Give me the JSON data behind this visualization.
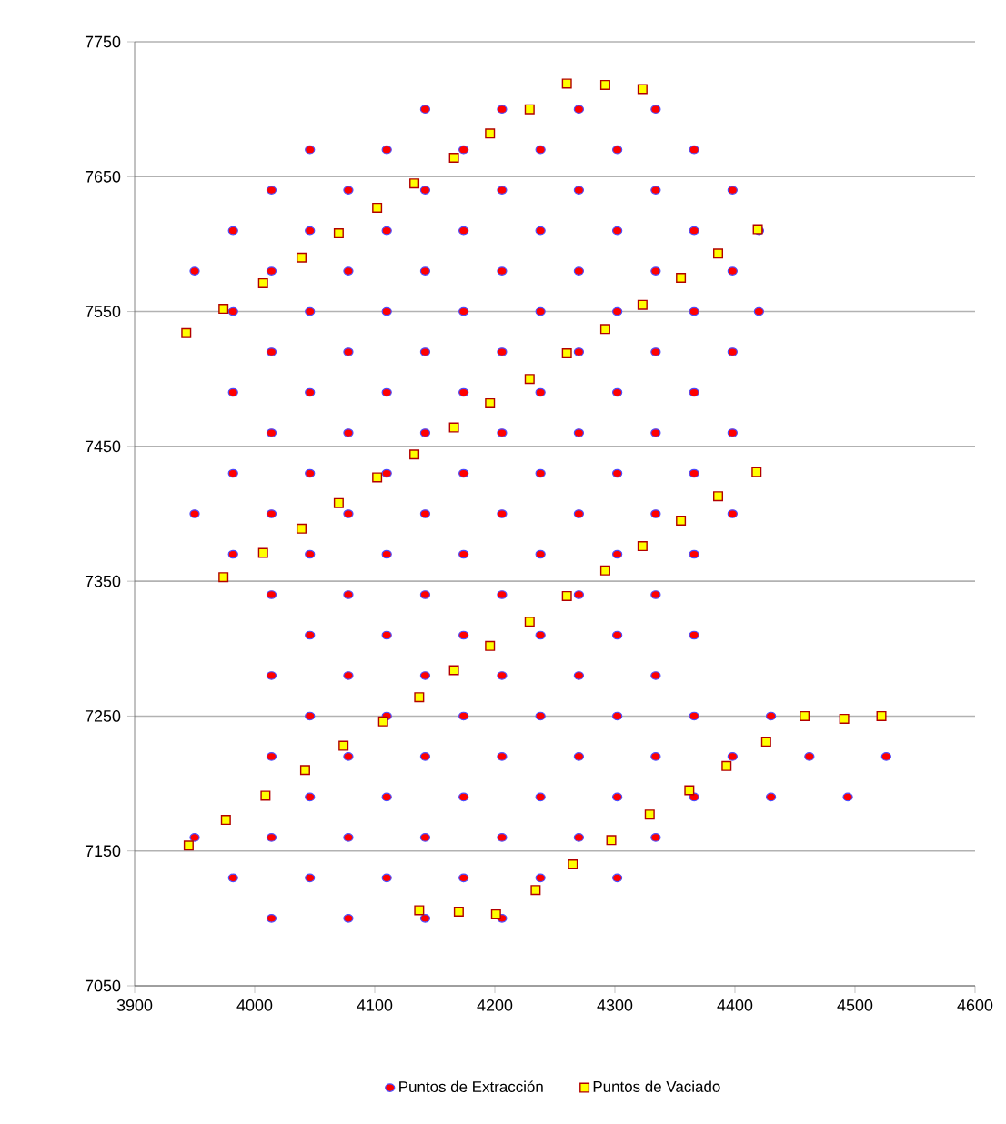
{
  "chart_data": {
    "type": "scatter",
    "xlim": [
      3900,
      4600
    ],
    "ylim": [
      7050,
      7750
    ],
    "xticks": [
      3900,
      4000,
      4100,
      4200,
      4300,
      4400,
      4500,
      4600
    ],
    "yticks": [
      7050,
      7150,
      7250,
      7350,
      7450,
      7550,
      7650,
      7750
    ],
    "grid": "y",
    "legend": "bottom",
    "series": [
      {
        "name": "Puntos de Extracción",
        "color": "#ff0000",
        "marker": "circle",
        "x": [
          3950,
          3950,
          3950,
          3982,
          3982,
          3982,
          3982,
          3982,
          3982,
          4014,
          4014,
          4014,
          4014,
          4014,
          4014,
          4014,
          4014,
          4014,
          4014,
          4046,
          4046,
          4046,
          4046,
          4046,
          4046,
          4046,
          4046,
          4046,
          4046,
          4078,
          4078,
          4078,
          4078,
          4078,
          4078,
          4078,
          4078,
          4078,
          4078,
          4110,
          4110,
          4110,
          4110,
          4110,
          4110,
          4110,
          4110,
          4110,
          4110,
          4142,
          4142,
          4142,
          4142,
          4142,
          4142,
          4142,
          4142,
          4142,
          4142,
          4142,
          4174,
          4174,
          4174,
          4174,
          4174,
          4174,
          4174,
          4174,
          4174,
          4174,
          4206,
          4206,
          4206,
          4206,
          4206,
          4206,
          4206,
          4206,
          4206,
          4206,
          4206,
          4238,
          4238,
          4238,
          4238,
          4238,
          4238,
          4238,
          4238,
          4238,
          4238,
          4270,
          4270,
          4270,
          4270,
          4270,
          4270,
          4270,
          4270,
          4270,
          4270,
          4302,
          4302,
          4302,
          4302,
          4302,
          4302,
          4302,
          4302,
          4302,
          4302,
          4334,
          4334,
          4334,
          4334,
          4334,
          4334,
          4334,
          4334,
          4334,
          4334,
          4366,
          4366,
          4366,
          4366,
          4366,
          4366,
          4366,
          4366,
          4366,
          4398,
          4398,
          4398,
          4398,
          4398,
          4398,
          4430,
          4430,
          4420,
          4420,
          4462,
          4494,
          4526
        ],
        "values": [
          7160,
          7400,
          7580,
          7130,
          7370,
          7430,
          7490,
          7550,
          7610,
          7100,
          7160,
          7220,
          7280,
          7340,
          7400,
          7460,
          7520,
          7580,
          7640,
          7130,
          7190,
          7250,
          7310,
          7370,
          7430,
          7490,
          7550,
          7610,
          7670,
          7100,
          7160,
          7220,
          7280,
          7340,
          7400,
          7460,
          7520,
          7580,
          7640,
          7130,
          7190,
          7250,
          7310,
          7370,
          7430,
          7490,
          7550,
          7610,
          7670,
          7100,
          7160,
          7220,
          7280,
          7340,
          7400,
          7460,
          7520,
          7580,
          7640,
          7700,
          7130,
          7190,
          7250,
          7310,
          7370,
          7430,
          7490,
          7550,
          7610,
          7670,
          7100,
          7160,
          7220,
          7280,
          7340,
          7400,
          7460,
          7520,
          7580,
          7640,
          7700,
          7130,
          7190,
          7250,
          7310,
          7370,
          7430,
          7490,
          7550,
          7610,
          7670,
          7160,
          7220,
          7280,
          7340,
          7400,
          7460,
          7520,
          7580,
          7640,
          7700,
          7130,
          7190,
          7250,
          7310,
          7370,
          7430,
          7490,
          7550,
          7610,
          7670,
          7160,
          7220,
          7280,
          7340,
          7400,
          7460,
          7520,
          7580,
          7640,
          7700,
          7190,
          7250,
          7310,
          7370,
          7430,
          7490,
          7550,
          7610,
          7670,
          7220,
          7400,
          7460,
          7520,
          7580,
          7640,
          7190,
          7250,
          7550,
          7610,
          7220,
          7190,
          7220
        ]
      },
      {
        "name": "Puntos de Vaciado",
        "color": "#ffff00",
        "marker": "square",
        "x": [
          3945,
          3976,
          4009,
          4042,
          4074,
          4107,
          4137,
          4137,
          4170,
          4201,
          4234,
          4265,
          4297,
          4329,
          4362,
          4393,
          4426,
          4458,
          4491,
          4522,
          3943,
          3974,
          4007,
          4039,
          4070,
          4102,
          4133,
          4166,
          4196,
          4229,
          4260,
          4292,
          4323,
          4292,
          4260,
          4229,
          4196,
          4166,
          4419,
          4386,
          4355,
          4323,
          4133,
          4102,
          4070,
          4039,
          4007,
          3974,
          4292,
          4260,
          4229,
          4196,
          4166,
          4418,
          4386,
          4355,
          4323
        ],
        "values": [
          7154,
          7173,
          7191,
          7210,
          7228,
          7246,
          7264,
          7106,
          7105,
          7103,
          7121,
          7140,
          7158,
          7177,
          7195,
          7213,
          7231,
          7250,
          7248,
          7250,
          7534,
          7552,
          7571,
          7590,
          7608,
          7627,
          7645,
          7664,
          7682,
          7700,
          7719,
          7718,
          7715,
          7537,
          7519,
          7500,
          7482,
          7464,
          7611,
          7593,
          7575,
          7555,
          7444,
          7427,
          7408,
          7389,
          7371,
          7353,
          7358,
          7339,
          7320,
          7302,
          7284,
          7431,
          7413,
          7395,
          7376
        ]
      }
    ]
  }
}
